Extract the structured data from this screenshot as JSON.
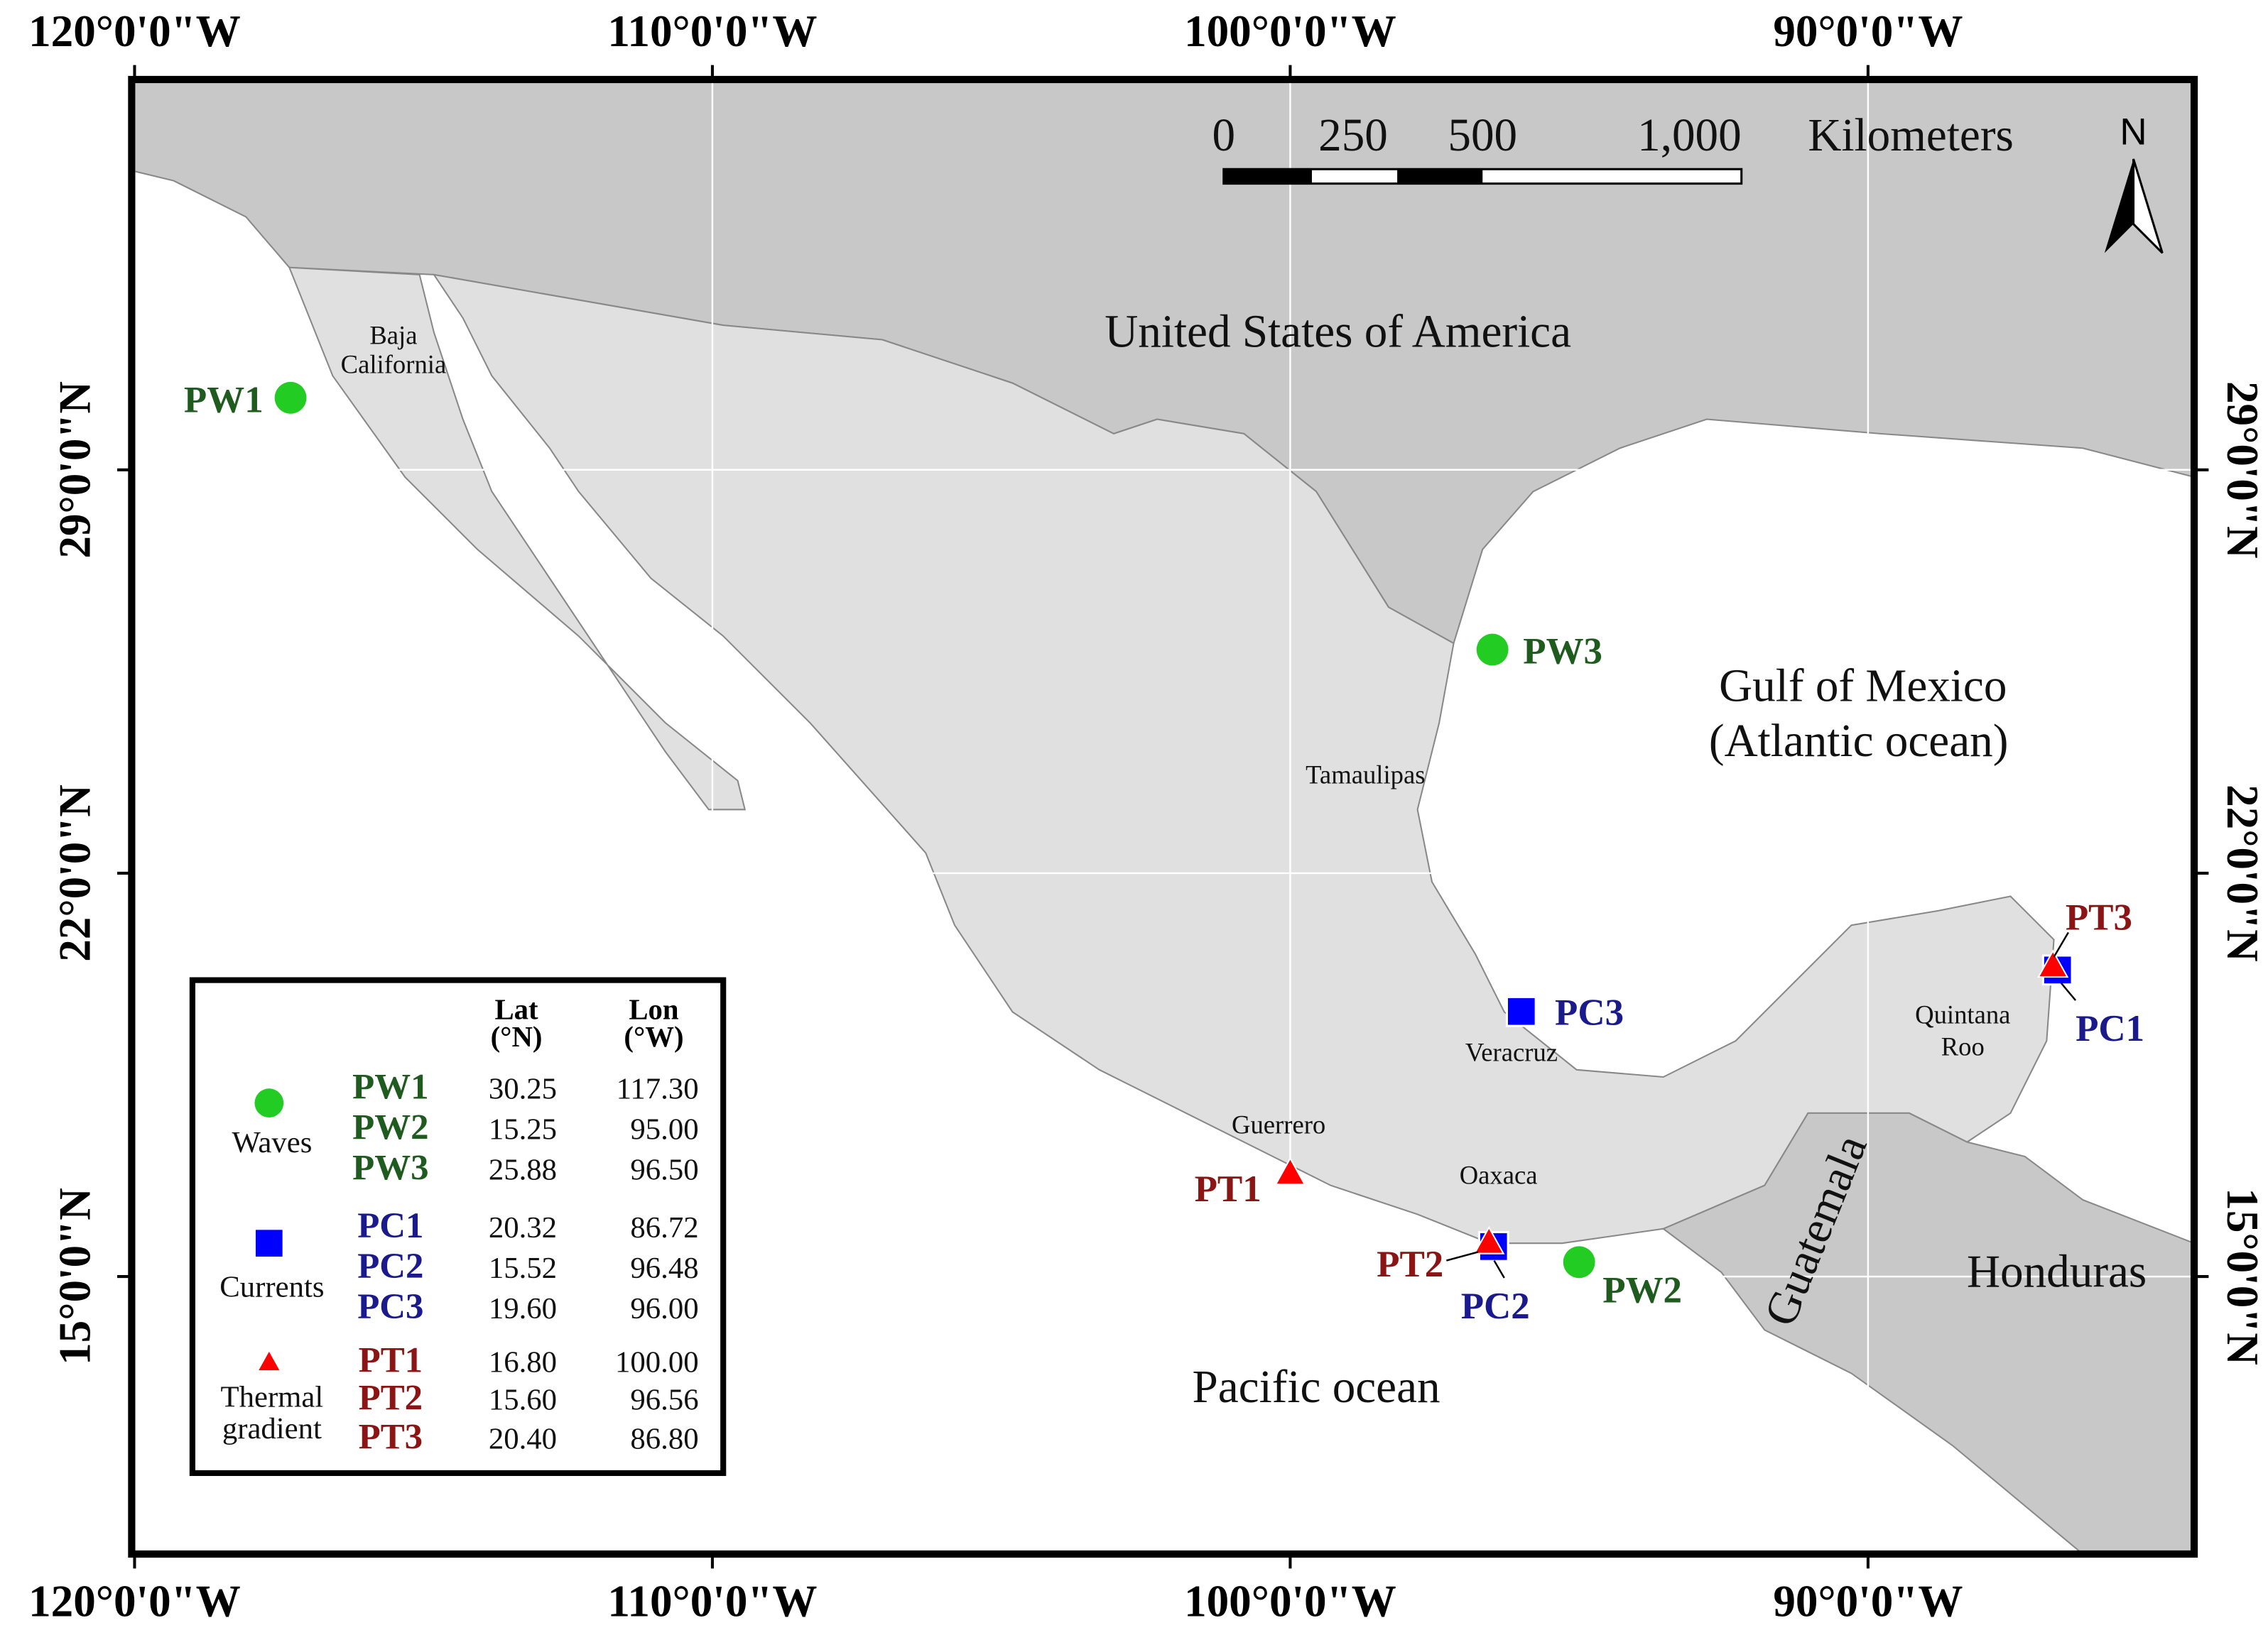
{
  "axes": {
    "lon_ticks": [
      {
        "value": 120,
        "label": "120°0'0\"W"
      },
      {
        "value": 110,
        "label": "110°0'0\"W"
      },
      {
        "value": 100,
        "label": "100°0'0\"W"
      },
      {
        "value": 90,
        "label": "90°0'0\"W"
      }
    ],
    "lat_ticks": [
      {
        "value": 29,
        "label": "29°0'0\"N"
      },
      {
        "value": 22,
        "label": "22°0'0\"N"
      },
      {
        "value": 15,
        "label": "15°0'0\"N"
      }
    ]
  },
  "scale_bar": {
    "ticks": [
      0,
      250,
      500,
      {
        "value": 1000,
        "label": "1,000"
      }
    ],
    "unit": "Kilometers"
  },
  "north": "N",
  "labels": {
    "usa": "United States of America",
    "gulf": "Gulf of Mexico",
    "gulf_sub": "(Atlantic ocean)",
    "pacific": "Pacific ocean",
    "honduras": "Honduras",
    "guatemala": "Guatemala",
    "baja": [
      "Baja",
      "California"
    ],
    "tamaulipas": "Tamaulipas",
    "veracruz": "Veracruz",
    "quintana_roo": [
      "Quintana",
      "Roo"
    ],
    "guerrero": "Guerrero",
    "oaxaca": "Oaxaca"
  },
  "legend": {
    "lat_header": [
      "Lat",
      "(°N)"
    ],
    "lon_header": [
      "Lon",
      "(°W)"
    ],
    "groups": [
      {
        "label": [
          "Waves"
        ],
        "symbol": "circle",
        "color": "#22cc22",
        "text_color": "#1f5a1f",
        "rows": [
          {
            "name": "PW1",
            "lat": "30.25",
            "lon": "117.30"
          },
          {
            "name": "PW2",
            "lat": "15.25",
            "lon": "95.00"
          },
          {
            "name": "PW3",
            "lat": "25.88",
            "lon": "96.50"
          }
        ]
      },
      {
        "label": [
          "Currents"
        ],
        "symbol": "square",
        "color": "#0000ff",
        "text_color": "#1a1a8c",
        "rows": [
          {
            "name": "PC1",
            "lat": "20.32",
            "lon": "86.72"
          },
          {
            "name": "PC2",
            "lat": "15.52",
            "lon": "96.48"
          },
          {
            "name": "PC3",
            "lat": "19.60",
            "lon": "96.00"
          }
        ]
      },
      {
        "label": [
          "Thermal",
          "gradient"
        ],
        "symbol": "triangle",
        "color": "#ff0000",
        "text_color": "#8b1414",
        "rows": [
          {
            "name": "PT1",
            "lat": "16.80",
            "lon": "100.00"
          },
          {
            "name": "PT2",
            "lat": "15.60",
            "lon": "96.56"
          },
          {
            "name": "PT3",
            "lat": "20.40",
            "lon": "86.80"
          }
        ]
      }
    ]
  }
}
